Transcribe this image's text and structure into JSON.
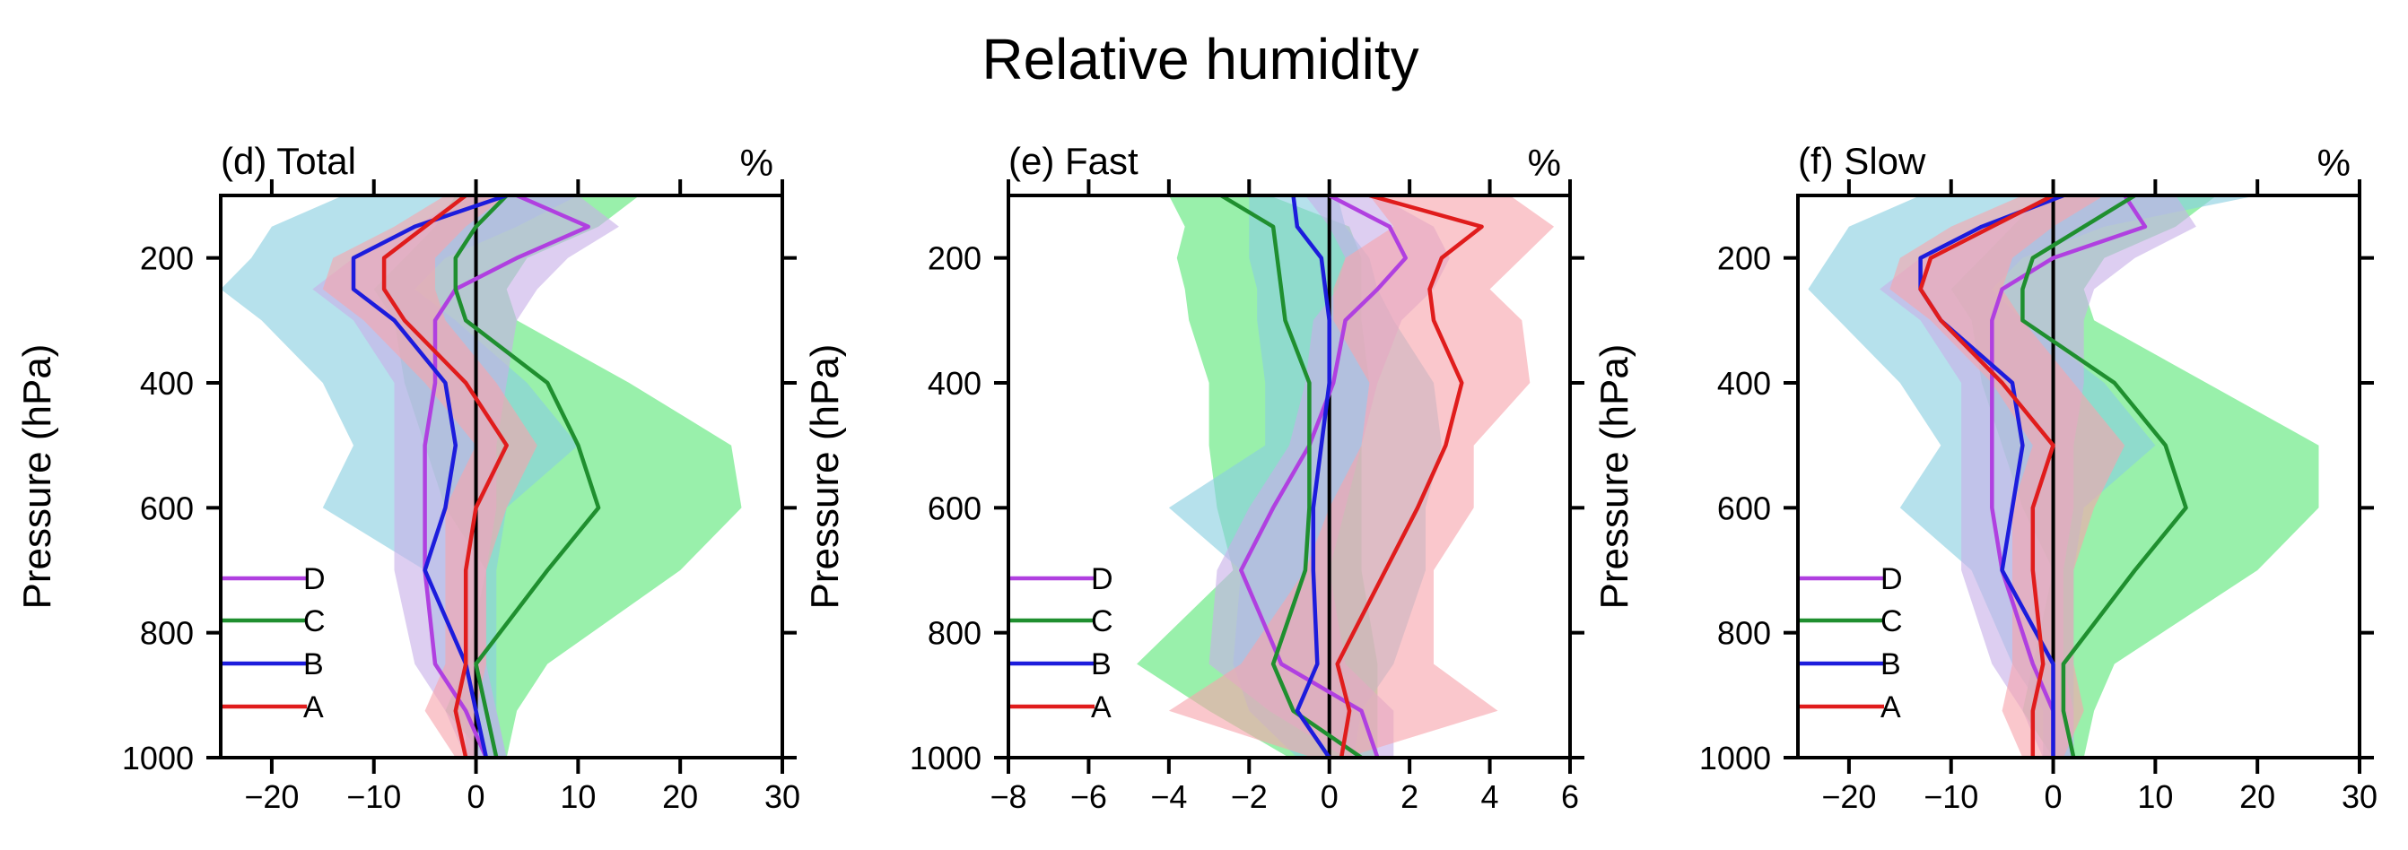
{
  "figure_title": "Relative humidity",
  "chart_data": [
    {
      "panel_id": "d",
      "type": "line",
      "title": "(d) Total",
      "unit": "%",
      "xlabel": "",
      "ylabel": "Pressure (hPa)",
      "xlim": [
        -25,
        30
      ],
      "ylim": [
        1000,
        100
      ],
      "xticks": [
        -20,
        -10,
        0,
        10,
        20,
        30
      ],
      "yticks": [
        200,
        400,
        600,
        800,
        1000
      ],
      "legend": [
        "D",
        "C",
        "B",
        "A"
      ],
      "series": [
        {
          "name": "D",
          "color": "#b040e0",
          "x": [
            4,
            11,
            4,
            -2,
            -4,
            -4,
            -5,
            -5,
            -5,
            -4,
            -1,
            1
          ],
          "y": [
            100,
            150,
            200,
            250,
            300,
            400,
            500,
            600,
            700,
            850,
            925,
            1000
          ]
        },
        {
          "name": "C",
          "color": "#1f8f2f",
          "x": [
            3,
            0,
            -2,
            -2,
            -1,
            3,
            7,
            10,
            12,
            7,
            0,
            2
          ],
          "y": [
            100,
            150,
            200,
            250,
            300,
            350,
            400,
            500,
            600,
            700,
            850,
            1000
          ]
        },
        {
          "name": "B",
          "color": "#1c1cdc",
          "x": [
            3,
            -6,
            -12,
            -12,
            -8,
            -3,
            -2,
            -3,
            -5,
            -1,
            0,
            1
          ],
          "y": [
            100,
            150,
            200,
            250,
            300,
            400,
            500,
            600,
            700,
            850,
            925,
            1000
          ]
        },
        {
          "name": "A",
          "color": "#e01c1c",
          "x": [
            -1,
            -5,
            -9,
            -9,
            -7,
            -1,
            3,
            0,
            -1,
            -1,
            -2,
            -1
          ],
          "y": [
            100,
            150,
            200,
            250,
            300,
            400,
            500,
            600,
            700,
            850,
            925,
            1000
          ]
        }
      ],
      "bands": [
        {
          "name": "C",
          "color": "#5ae678",
          "lower": [
            -2,
            -4,
            -7,
            -10,
            -8,
            -7,
            -5,
            -3,
            1,
            -1,
            -3,
            1
          ],
          "upper": [
            16,
            12,
            5,
            3,
            4,
            15,
            25,
            26,
            20,
            7,
            4,
            3
          ],
          "y": [
            100,
            150,
            200,
            250,
            300,
            400,
            500,
            600,
            700,
            850,
            925,
            1000
          ]
        },
        {
          "name": "B",
          "color": "#89cfe0",
          "lower": [
            -13,
            -20,
            -22,
            -25,
            -21,
            -15,
            -12,
            -15,
            -5,
            -4,
            -1,
            -1
          ],
          "upper": [
            10,
            4,
            -3,
            -6,
            -2,
            5,
            10,
            3,
            2,
            2,
            2,
            3
          ],
          "y": [
            100,
            150,
            200,
            250,
            300,
            400,
            500,
            600,
            700,
            850,
            925,
            1000
          ]
        },
        {
          "name": "D",
          "color": "#c8b0e8",
          "lower": [
            -1,
            -6,
            -12,
            -16,
            -12,
            -8,
            -8,
            -8,
            -8,
            -6,
            -3,
            -1
          ],
          "upper": [
            10,
            14,
            9,
            6,
            4,
            3,
            2,
            2,
            1,
            1,
            2,
            3
          ],
          "y": [
            100,
            150,
            200,
            250,
            300,
            400,
            500,
            600,
            700,
            850,
            925,
            1000
          ]
        },
        {
          "name": "A",
          "color": "#f7a5ad",
          "lower": [
            -3,
            -8,
            -14,
            -15,
            -11,
            -5,
            0,
            -3,
            -3,
            -3,
            -5,
            -2
          ],
          "upper": [
            3,
            -1,
            -4,
            -4,
            -3,
            2,
            6,
            3,
            1,
            1,
            0,
            0
          ],
          "y": [
            100,
            150,
            200,
            250,
            300,
            400,
            500,
            600,
            700,
            850,
            925,
            1000
          ]
        }
      ]
    },
    {
      "panel_id": "e",
      "type": "line",
      "title": "(e) Fast",
      "unit": "%",
      "xlabel": "",
      "ylabel": "Pressure (hPa)",
      "xlim": [
        -8,
        6
      ],
      "ylim": [
        1000,
        100
      ],
      "xticks": [
        -8,
        -6,
        -4,
        -2,
        0,
        2,
        4,
        6
      ],
      "yticks": [
        200,
        400,
        600,
        800,
        1000
      ],
      "legend": [
        "D",
        "C",
        "B",
        "A"
      ],
      "series": [
        {
          "name": "D",
          "color": "#b040e0",
          "x": [
            0,
            1.5,
            1.9,
            1.2,
            0.4,
            0.1,
            -0.5,
            -1.4,
            -2.2,
            -1.2,
            0.8,
            1.2
          ],
          "y": [
            100,
            150,
            200,
            250,
            300,
            400,
            500,
            600,
            700,
            850,
            925,
            1000
          ]
        },
        {
          "name": "C",
          "color": "#1f8f2f",
          "x": [
            -2.7,
            -1.4,
            -1.3,
            -1.2,
            -1.1,
            -0.5,
            -0.5,
            -0.5,
            -0.6,
            -1.4,
            -0.9,
            0.8
          ],
          "y": [
            100,
            150,
            200,
            250,
            300,
            400,
            500,
            600,
            700,
            850,
            925,
            1000
          ]
        },
        {
          "name": "B",
          "color": "#1c1cdc",
          "x": [
            -0.9,
            -0.8,
            -0.2,
            -0.1,
            0,
            0,
            -0.2,
            -0.4,
            -0.4,
            -0.3,
            -0.8,
            0
          ],
          "y": [
            100,
            150,
            200,
            250,
            300,
            400,
            500,
            600,
            700,
            850,
            925,
            1000
          ]
        },
        {
          "name": "A",
          "color": "#e01c1c",
          "x": [
            1,
            3.8,
            2.8,
            2.5,
            2.6,
            3.3,
            2.9,
            2.2,
            1.4,
            0.2,
            0.5,
            0.3
          ],
          "y": [
            100,
            150,
            200,
            250,
            300,
            400,
            500,
            600,
            700,
            850,
            925,
            1000
          ]
        }
      ],
      "bands": [
        {
          "name": "C",
          "color": "#5ae678",
          "lower": [
            -4,
            -3.6,
            -3.8,
            -3.6,
            -3.5,
            -3,
            -3,
            -2.8,
            -2.4,
            -4.8,
            -3,
            -1
          ],
          "upper": [
            -1.5,
            0.5,
            0.8,
            0.8,
            0.8,
            1,
            0.8,
            0.8,
            0.8,
            1.2,
            1.2,
            1.2
          ],
          "y": [
            100,
            150,
            200,
            250,
            300,
            400,
            500,
            600,
            700,
            850,
            925,
            1000
          ]
        },
        {
          "name": "B",
          "color": "#89cfe0",
          "lower": [
            -2,
            -2,
            -2,
            -1.8,
            -1.8,
            -1.6,
            -1.6,
            -4,
            -2.2,
            -2.4,
            -2,
            -0.8
          ],
          "upper": [
            0.2,
            0.4,
            1,
            1.2,
            1.6,
            2.6,
            2.8,
            2.4,
            2.4,
            1.6,
            0.8,
            0.6
          ],
          "y": [
            100,
            150,
            200,
            250,
            300,
            400,
            500,
            600,
            700,
            850,
            925,
            1000
          ]
        },
        {
          "name": "D",
          "color": "#c8b0e8",
          "lower": [
            -0.6,
            0,
            0.4,
            0.2,
            -0.4,
            -0.6,
            -1,
            -2,
            -2.8,
            -3,
            -1.5,
            0.4
          ],
          "upper": [
            1.2,
            2.6,
            3,
            2.6,
            1.8,
            1.2,
            0.8,
            0.4,
            0,
            0.4,
            1.6,
            1.6
          ],
          "y": [
            100,
            150,
            200,
            250,
            300,
            400,
            500,
            600,
            700,
            850,
            925,
            1000
          ]
        },
        {
          "name": "A",
          "color": "#f7a5ad",
          "lower": [
            1,
            1.6,
            0.4,
            0.1,
            0.1,
            1,
            0.8,
            0,
            -0.6,
            -2.2,
            -4,
            -0.4
          ],
          "upper": [
            4.5,
            5.6,
            4.8,
            4,
            4.8,
            5,
            3.6,
            3.6,
            2.6,
            2.6,
            4.2,
            0.4
          ],
          "y": [
            100,
            150,
            200,
            250,
            300,
            400,
            500,
            600,
            700,
            850,
            925,
            1000
          ]
        }
      ]
    },
    {
      "panel_id": "f",
      "type": "line",
      "title": "(f) Slow",
      "unit": "%",
      "xlabel": "",
      "ylabel": "Pressure (hPa)",
      "xlim": [
        -25,
        30
      ],
      "ylim": [
        1000,
        100
      ],
      "xticks": [
        -20,
        -10,
        0,
        10,
        20,
        30
      ],
      "yticks": [
        200,
        400,
        600,
        800,
        1000
      ],
      "legend": [
        "D",
        "C",
        "B",
        "A"
      ],
      "series": [
        {
          "name": "D",
          "color": "#b040e0",
          "x": [
            7,
            9,
            0,
            -5,
            -6,
            -6,
            -6,
            -6,
            -5,
            -2,
            0,
            0
          ],
          "y": [
            100,
            150,
            200,
            250,
            300,
            400,
            500,
            600,
            700,
            850,
            925,
            1000
          ]
        },
        {
          "name": "C",
          "color": "#1f8f2f",
          "x": [
            8,
            3,
            -2,
            -3,
            -3,
            6,
            11,
            13,
            8,
            1,
            1,
            2
          ],
          "y": [
            100,
            150,
            200,
            250,
            300,
            400,
            500,
            600,
            700,
            850,
            925,
            1000
          ]
        },
        {
          "name": "B",
          "color": "#1c1cdc",
          "x": [
            1,
            -7,
            -13,
            -13,
            -11,
            -4,
            -3,
            -4,
            -5,
            0,
            0,
            0
          ],
          "y": [
            100,
            150,
            200,
            250,
            300,
            400,
            500,
            600,
            700,
            850,
            925,
            1000
          ]
        },
        {
          "name": "A",
          "color": "#e01c1c",
          "x": [
            0,
            -6,
            -12,
            -13,
            -11,
            -5,
            0,
            -2,
            -2,
            -1,
            -2,
            -2
          ],
          "y": [
            100,
            150,
            200,
            250,
            300,
            400,
            500,
            600,
            700,
            850,
            925,
            1000
          ]
        }
      ],
      "bands": [
        {
          "name": "C",
          "color": "#5ae678",
          "lower": [
            -1,
            -4,
            -7,
            -10,
            -8,
            -7,
            -5,
            -3,
            0,
            -2,
            -3,
            0
          ],
          "upper": [
            16,
            12,
            5,
            3,
            4,
            15,
            26,
            26,
            20,
            6,
            4,
            3
          ],
          "y": [
            100,
            150,
            200,
            250,
            300,
            400,
            500,
            600,
            700,
            850,
            925,
            1000
          ]
        },
        {
          "name": "B",
          "color": "#89cfe0",
          "lower": [
            -13,
            -20,
            -22,
            -24,
            -21,
            -15,
            -11,
            -15,
            -8,
            -4,
            -1,
            -1
          ],
          "upper": [
            20,
            5,
            -3,
            -6,
            -3,
            5,
            10,
            3,
            2,
            2,
            2,
            2
          ],
          "y": [
            100,
            150,
            200,
            250,
            300,
            400,
            500,
            600,
            700,
            850,
            925,
            1000
          ]
        },
        {
          "name": "D",
          "color": "#c8b0e8",
          "lower": [
            0,
            -7,
            -13,
            -17,
            -13,
            -9,
            -9,
            -9,
            -9,
            -6,
            -3,
            -1
          ],
          "upper": [
            12,
            14,
            8,
            4,
            3,
            3,
            2,
            2,
            1,
            1,
            2,
            2
          ],
          "y": [
            100,
            150,
            200,
            250,
            300,
            400,
            500,
            600,
            700,
            850,
            925,
            1000
          ]
        },
        {
          "name": "A",
          "color": "#f7a5ad",
          "lower": [
            -3,
            -10,
            -15,
            -16,
            -12,
            -6,
            -2,
            -4,
            -4,
            -4,
            -5,
            -3
          ],
          "upper": [
            5,
            0,
            -4,
            -5,
            -3,
            2,
            7,
            4,
            2,
            2,
            3,
            1
          ],
          "y": [
            100,
            150,
            200,
            250,
            300,
            400,
            500,
            600,
            700,
            850,
            925,
            1000
          ]
        }
      ]
    }
  ]
}
